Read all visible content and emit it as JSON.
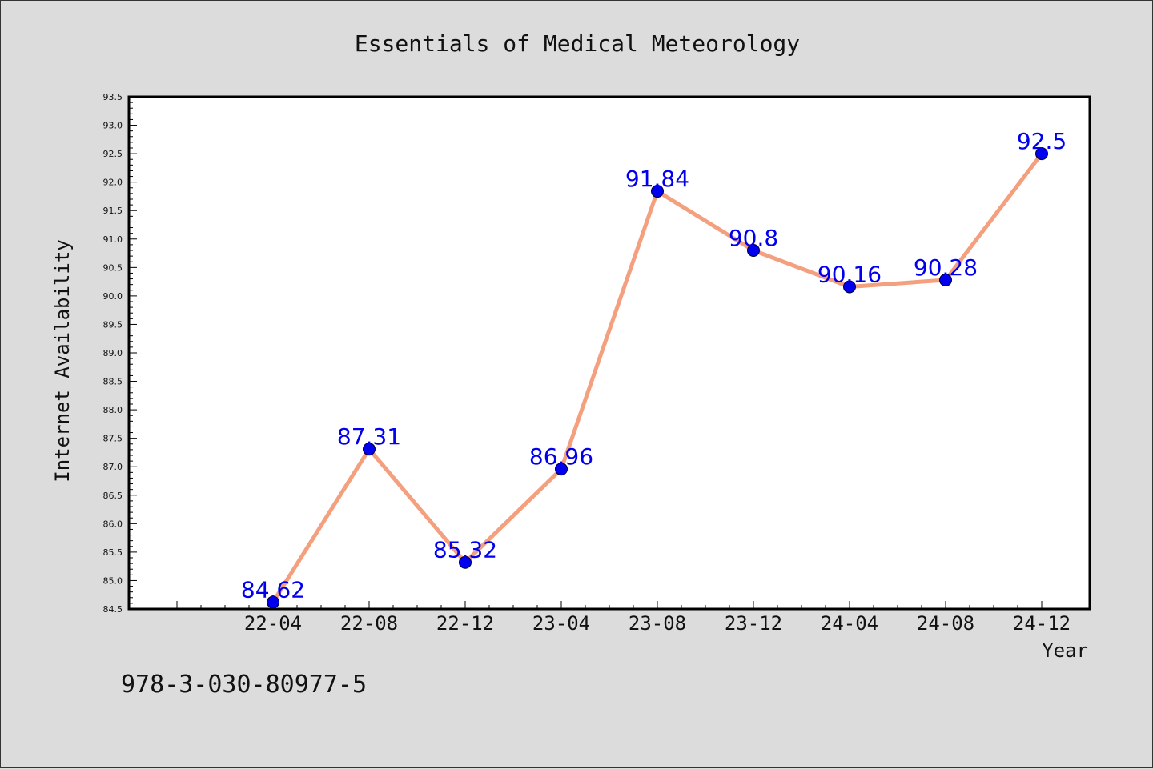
{
  "chart_data": {
    "type": "line",
    "title": "Essentials of Medical Meteorology",
    "xlabel": "Year",
    "ylabel": "Internet Availability",
    "categories": [
      "22-04",
      "22-08",
      "22-12",
      "23-04",
      "23-08",
      "23-12",
      "24-04",
      "24-08",
      "24-12"
    ],
    "series": [
      {
        "values": [
          84.62,
          87.31,
          85.32,
          86.96,
          91.84,
          90.8,
          90.16,
          90.28,
          92.5
        ],
        "labels": [
          "84.62",
          "87.31",
          "85.32",
          "86.96",
          "91.84",
          "90.8",
          "90.16",
          "90.28",
          "92.5"
        ],
        "line_color": "#f4a07e",
        "marker_color": "#0000ee"
      }
    ],
    "ylim": [
      84.5,
      93.5
    ],
    "ytick_step": 0.5,
    "ytick_labels": [
      "84.5",
      "85.0",
      "85.5",
      "86.0",
      "86.5",
      "87.0",
      "87.5",
      "88.0",
      "88.5",
      "89.0",
      "89.5",
      "90.0",
      "90.5",
      "91.0",
      "91.5",
      "92.0",
      "92.5",
      "93.0",
      "93.5"
    ],
    "grid": false,
    "legend": "none",
    "label_color": "#0000ee"
  },
  "footer": {
    "code": "978-3-030-80977-5"
  }
}
